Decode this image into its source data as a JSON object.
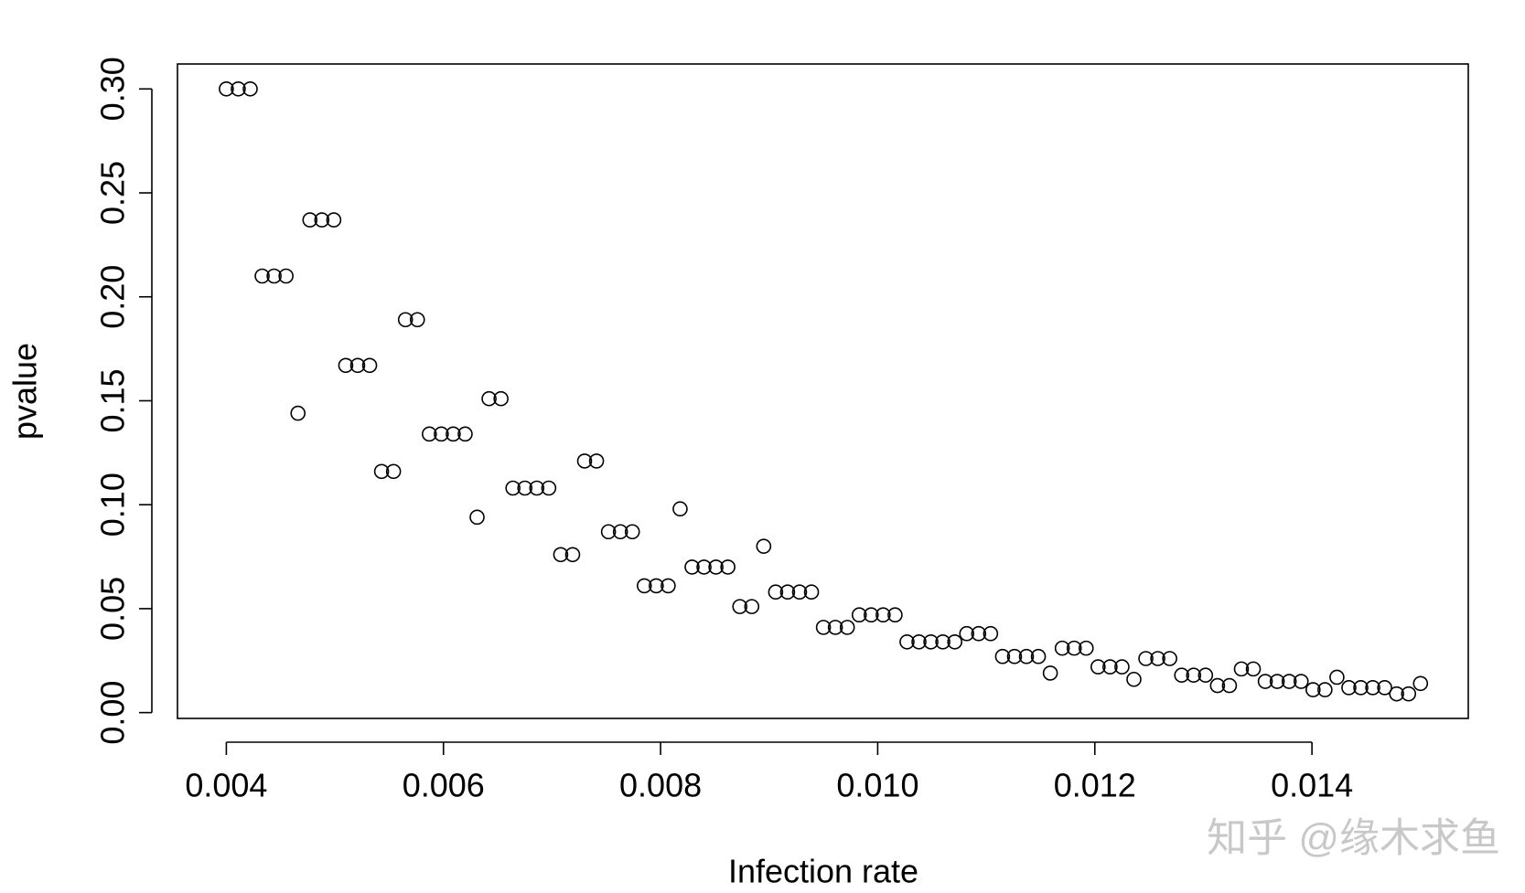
{
  "chart_data": {
    "type": "scatter",
    "xlabel": "Infection rate",
    "ylabel": "pvalue",
    "watermark": "知乎 @缘木求鱼",
    "xlim": [
      0.00355,
      0.01544
    ],
    "ylim": [
      -0.0028,
      0.312
    ],
    "xticks": [
      0.004,
      0.006,
      0.008,
      {
        "value": 0.01,
        "label": "0.010"
      },
      0.012,
      0.014
    ],
    "yticks": [
      {
        "value": 0,
        "label": "0.00"
      },
      0.05,
      {
        "value": 0.1,
        "label": "0.10"
      },
      0.15,
      {
        "value": 0.2,
        "label": "0.20"
      },
      0.25,
      {
        "value": 0.3,
        "label": "0.30"
      }
    ],
    "color": "#000000",
    "x": [
      0.004,
      0.00411,
      0.00422,
      0.00433,
      0.00444,
      0.00455,
      0.00466,
      0.00477,
      0.00488,
      0.00499,
      0.0051,
      0.00521,
      0.00532,
      0.00543,
      0.00554,
      0.00565,
      0.00576,
      0.00587,
      0.00598,
      0.00609,
      0.0062,
      0.00631,
      0.00642,
      0.00653,
      0.00664,
      0.00675,
      0.00686,
      0.00697,
      0.00708,
      0.00719,
      0.0073,
      0.00741,
      0.00752,
      0.00763,
      0.00774,
      0.00785,
      0.00796,
      0.00807,
      0.00818,
      0.00829,
      0.0084,
      0.00851,
      0.00862,
      0.00873,
      0.00884,
      0.00895,
      0.00906,
      0.00917,
      0.00928,
      0.00939,
      0.0095,
      0.00961,
      0.00972,
      0.00983,
      0.00994,
      0.01005,
      0.01016,
      0.01027,
      0.01038,
      0.01049,
      0.0106,
      0.01071,
      0.01082,
      0.01093,
      0.01104,
      0.01115,
      0.01126,
      0.01137,
      0.01148,
      0.01159,
      0.0117,
      0.01181,
      0.01192,
      0.01203,
      0.01214,
      0.01225,
      0.01236,
      0.01247,
      0.01258,
      0.01269,
      0.0128,
      0.01291,
      0.01302,
      0.01313,
      0.01324,
      0.01335,
      0.01346,
      0.01357,
      0.01368,
      0.01379,
      0.0139,
      0.01401,
      0.01412,
      0.01423,
      0.01434,
      0.01445,
      0.01456,
      0.01467,
      0.01478,
      0.01489,
      0.015
    ],
    "values": [
      0.3,
      0.3,
      0.3,
      0.21,
      0.21,
      0.21,
      0.144,
      0.237,
      0.237,
      0.237,
      0.167,
      0.167,
      0.167,
      0.116,
      0.116,
      0.189,
      0.189,
      0.134,
      0.134,
      0.134,
      0.134,
      0.094,
      0.151,
      0.151,
      0.108,
      0.108,
      0.108,
      0.108,
      0.076,
      0.076,
      0.121,
      0.121,
      0.087,
      0.087,
      0.087,
      0.061,
      0.061,
      0.061,
      0.098,
      0.07,
      0.07,
      0.07,
      0.07,
      0.051,
      0.051,
      0.08,
      0.058,
      0.058,
      0.058,
      0.058,
      0.041,
      0.041,
      0.041,
      0.047,
      0.047,
      0.047,
      0.047,
      0.034,
      0.034,
      0.034,
      0.034,
      0.034,
      0.038,
      0.038,
      0.038,
      0.027,
      0.027,
      0.027,
      0.027,
      0.019,
      0.031,
      0.031,
      0.031,
      0.022,
      0.022,
      0.022,
      0.016,
      0.026,
      0.026,
      0.026,
      0.018,
      0.018,
      0.018,
      0.013,
      0.013,
      0.021,
      0.021,
      0.015,
      0.015,
      0.015,
      0.015,
      0.011,
      0.011,
      0.017,
      0.012,
      0.012,
      0.012,
      0.012,
      0.009,
      0.009,
      0.014
    ]
  }
}
